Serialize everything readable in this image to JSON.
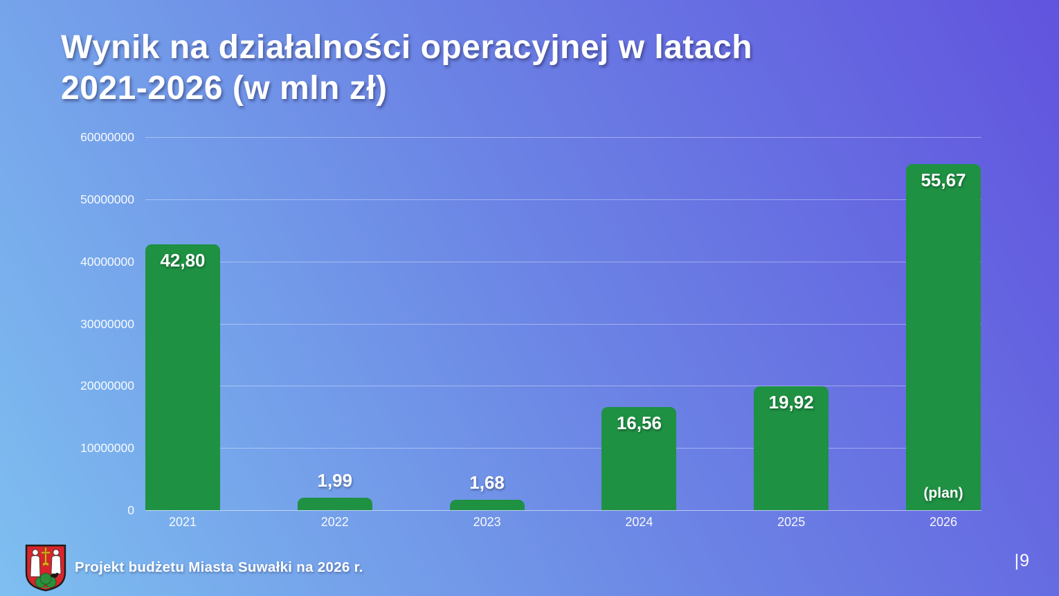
{
  "slide": {
    "title_line1": "Wynik na działalności operacyjnej w latach",
    "title_line2": "2021-2026 (w mln zł)",
    "footer": {
      "logo": "suwalki-coat-of-arms",
      "text": "Projekt budżetu Miasta Suwałki na 2026 r."
    },
    "page_number": "|9"
  },
  "colors": {
    "background_gradient_start": "#7ebff0",
    "background_gradient_end": "#6153de",
    "bar_green": "#1e9143",
    "text_white": "#ffffff",
    "gridline": "rgba(255,255,255,0.38)"
  },
  "chart_data": {
    "type": "bar",
    "title": "Wynik na działalności operacyjnej w latach 2021-2026 (w mln zł)",
    "xlabel": "",
    "ylabel": "",
    "categories": [
      "2021",
      "2022",
      "2023",
      "2024",
      "2025",
      "2026"
    ],
    "values_mln_zl": [
      42.8,
      1.99,
      1.68,
      16.56,
      19.92,
      55.67
    ],
    "bar_labels": [
      "42,80",
      "1,99",
      "1,68",
      "16,56",
      "19,92",
      "55,67"
    ],
    "bar_label_position": [
      "inside",
      "above",
      "above",
      "inside",
      "inside",
      "inside"
    ],
    "bar_annotations": [
      "",
      "",
      "",
      "",
      "",
      "(plan)"
    ],
    "y_ticks": [
      "60000000",
      "50000000",
      "40000000",
      "30000000",
      "20000000",
      "10000000",
      "0"
    ],
    "ylim": [
      0,
      60000000
    ],
    "value_unit": "mln zł",
    "grid": true,
    "legend": false,
    "bar_color": "#1e9143"
  }
}
